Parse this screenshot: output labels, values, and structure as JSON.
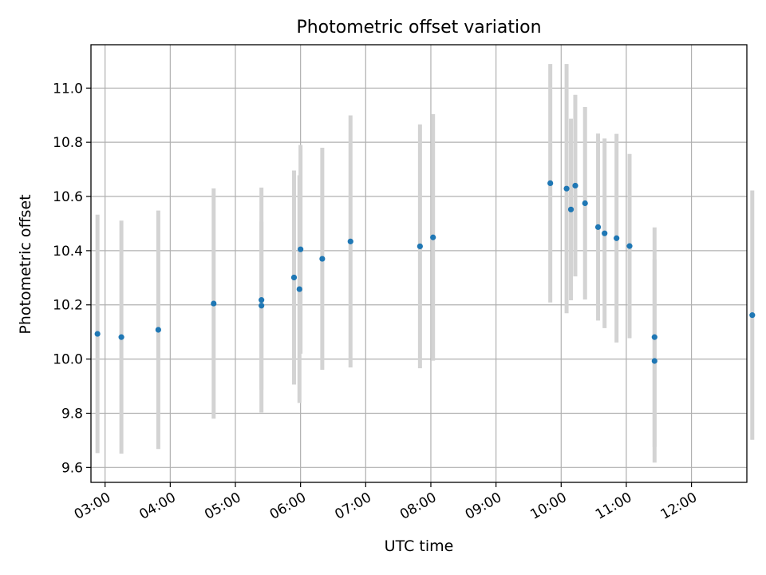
{
  "chart_data": {
    "type": "scatter",
    "title": "Photometric offset variation",
    "xlabel": "UTC time",
    "ylabel": "Photometric offset",
    "xlim": [
      "02:47",
      "12:51"
    ],
    "ylim": [
      9.545,
      11.16
    ],
    "x_ticks": [
      "03:00",
      "04:00",
      "05:00",
      "06:00",
      "07:00",
      "08:00",
      "09:00",
      "10:00",
      "11:00",
      "12:00"
    ],
    "y_ticks": [
      9.6,
      9.8,
      10.0,
      10.2,
      10.4,
      10.6,
      10.8,
      11.0
    ],
    "grid": true,
    "colors": {
      "point": "#1f77b4",
      "errorbar": "#d3d3d3",
      "grid": "#b0b0b0"
    },
    "points": [
      {
        "time": "02:53",
        "y": 10.093,
        "yerr": 0.44
      },
      {
        "time": "03:15",
        "y": 10.081,
        "yerr": 0.43
      },
      {
        "time": "03:49",
        "y": 10.108,
        "yerr": 0.44
      },
      {
        "time": "04:40",
        "y": 10.205,
        "yerr": 0.425
      },
      {
        "time": "05:24",
        "y": 10.197,
        "yerr": 0.31
      },
      {
        "time": "05:24",
        "y": 10.218,
        "yerr": 0.415
      },
      {
        "time": "05:54",
        "y": 10.301,
        "yerr": 0.395
      },
      {
        "time": "05:59",
        "y": 10.258,
        "yerr": 0.42
      },
      {
        "time": "06:00",
        "y": 10.405,
        "yerr": 0.385
      },
      {
        "time": "06:20",
        "y": 10.37,
        "yerr": 0.41
      },
      {
        "time": "06:46",
        "y": 10.434,
        "yerr": 0.465
      },
      {
        "time": "07:50",
        "y": 10.416,
        "yerr": 0.45
      },
      {
        "time": "08:02",
        "y": 10.449,
        "yerr": 0.455
      },
      {
        "time": "09:50",
        "y": 10.649,
        "yerr": 0.44
      },
      {
        "time": "10:05",
        "y": 10.629,
        "yerr": 0.46
      },
      {
        "time": "10:09",
        "y": 10.552,
        "yerr": 0.335
      },
      {
        "time": "10:13",
        "y": 10.64,
        "yerr": 0.335
      },
      {
        "time": "10:22",
        "y": 10.575,
        "yerr": 0.355
      },
      {
        "time": "10:34",
        "y": 10.487,
        "yerr": 0.345
      },
      {
        "time": "10:40",
        "y": 10.464,
        "yerr": 0.35
      },
      {
        "time": "10:51",
        "y": 10.446,
        "yerr": 0.385
      },
      {
        "time": "11:03",
        "y": 10.417,
        "yerr": 0.34
      },
      {
        "time": "11:26",
        "y": 10.081,
        "yerr": 0.405
      },
      {
        "time": "11:26",
        "y": 9.993,
        "yerr": 0.375
      },
      {
        "time": "12:56",
        "y": 10.162,
        "yerr": 0.46
      }
    ]
  }
}
